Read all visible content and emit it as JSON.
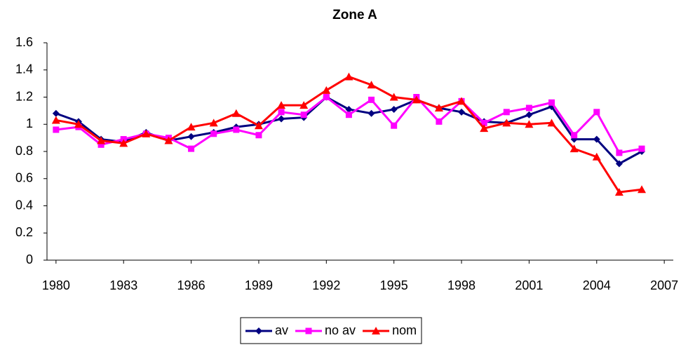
{
  "chart_data": {
    "type": "line",
    "title": "Zone A",
    "x": [
      1980,
      1981,
      1982,
      1983,
      1984,
      1985,
      1986,
      1987,
      1988,
      1989,
      1990,
      1991,
      1992,
      1993,
      1994,
      1995,
      1996,
      1997,
      1998,
      1999,
      2000,
      2001,
      2002,
      2003,
      2004,
      2005,
      2006
    ],
    "series": [
      {
        "name": "av",
        "color": "#000080",
        "marker": "diamond",
        "values": [
          1.08,
          1.02,
          0.89,
          0.87,
          0.94,
          0.88,
          0.91,
          0.94,
          0.98,
          1.0,
          1.04,
          1.05,
          1.2,
          1.11,
          1.08,
          1.11,
          1.18,
          1.12,
          1.09,
          1.02,
          1.01,
          1.07,
          1.13,
          0.89,
          0.89,
          0.71,
          0.8
        ]
      },
      {
        "name": "no av",
        "color": "#ff00ff",
        "marker": "square",
        "values": [
          0.96,
          0.98,
          0.85,
          0.89,
          0.93,
          0.9,
          0.82,
          0.93,
          0.96,
          0.92,
          1.09,
          1.07,
          1.2,
          1.07,
          1.18,
          0.99,
          1.2,
          1.02,
          1.17,
          1.01,
          1.09,
          1.12,
          1.16,
          0.92,
          1.09,
          0.79,
          0.82
        ]
      },
      {
        "name": "nom",
        "color": "#ff0000",
        "marker": "triangle",
        "values": [
          1.03,
          1.0,
          0.88,
          0.86,
          0.93,
          0.88,
          0.98,
          1.01,
          1.08,
          0.99,
          1.14,
          1.14,
          1.25,
          1.35,
          1.29,
          1.2,
          1.18,
          1.12,
          1.17,
          0.97,
          1.01,
          1.0,
          1.01,
          0.82,
          0.76,
          0.5,
          0.52
        ]
      }
    ],
    "xlim": [
      1979.6,
      2007.4
    ],
    "xticks": [
      1980,
      1983,
      1986,
      1989,
      1992,
      1995,
      1998,
      2001,
      2004,
      2007
    ],
    "ylim": [
      0,
      1.6
    ],
    "yticks": [
      0,
      0.2,
      0.4,
      0.6,
      0.8,
      1,
      1.2,
      1.4,
      1.6
    ],
    "grid": false,
    "legend": "bottom"
  }
}
